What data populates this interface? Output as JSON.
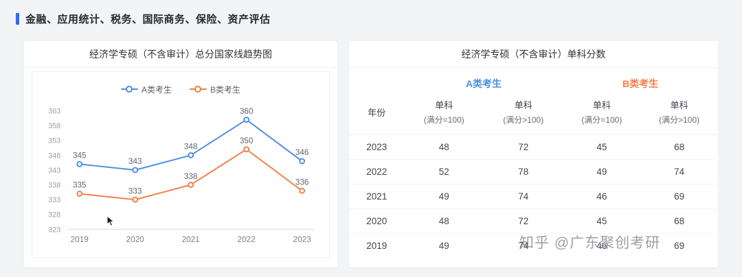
{
  "header": {
    "title": "金融、应用统计、税务、国际商务、保险、资产评估"
  },
  "watermark": "知乎 @广东聚创考研",
  "colors": {
    "accent": "#2e6bf2",
    "series_a": "#4a90e2",
    "series_b": "#f57d45",
    "axis_text": "#9aa0a6",
    "point_label_text": "#5f6570"
  },
  "left_card": {
    "title": "经济学专硕（不含审计）总分国家线趋势图"
  },
  "chart_data": {
    "type": "line",
    "title": "经济学专硕（不含审计）总分国家线趋势图",
    "x": [
      "2019",
      "2020",
      "2021",
      "2022",
      "2023"
    ],
    "series": [
      {
        "name": "A类考生",
        "color": "#4a90e2",
        "values": [
          345,
          343,
          348,
          360,
          346
        ]
      },
      {
        "name": "B类考生",
        "color": "#f57d45",
        "values": [
          335,
          333,
          338,
          350,
          336
        ]
      }
    ],
    "ylim": [
      323,
      363
    ],
    "yticks": [
      323,
      328,
      333,
      338,
      343,
      348,
      353,
      358,
      363
    ],
    "grid": false,
    "legend_position": "top",
    "point_labels": true
  },
  "right_card": {
    "title": "经济学专硕（不含审计）单科分数",
    "group_headers": [
      {
        "label": "A类考生",
        "color": "#4a90e2"
      },
      {
        "label": "B类考生",
        "color": "#f57d45"
      }
    ],
    "columns": {
      "year": "年份",
      "scores": [
        {
          "main": "单科",
          "sub": "(满分=100)"
        },
        {
          "main": "单科",
          "sub": "(满分>100)"
        },
        {
          "main": "单科",
          "sub": "(满分=100)"
        },
        {
          "main": "单科",
          "sub": "(满分>100)"
        }
      ]
    },
    "rows": [
      {
        "year": "2023",
        "a1": "48",
        "a2": "72",
        "b1": "45",
        "b2": "68"
      },
      {
        "year": "2022",
        "a1": "52",
        "a2": "78",
        "b1": "49",
        "b2": "74"
      },
      {
        "year": "2021",
        "a1": "49",
        "a2": "74",
        "b1": "46",
        "b2": "69"
      },
      {
        "year": "2020",
        "a1": "48",
        "a2": "72",
        "b1": "45",
        "b2": "68"
      },
      {
        "year": "2019",
        "a1": "49",
        "a2": "74",
        "b1": "46",
        "b2": "69"
      }
    ]
  }
}
